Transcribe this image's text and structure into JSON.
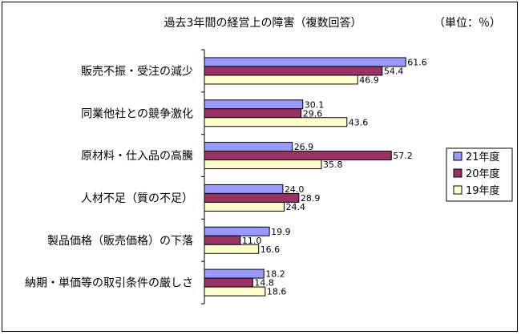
{
  "chart_data": {
    "type": "bar",
    "orientation": "horizontal",
    "title": "過去3年間の経営上の障害（複数回答）",
    "unit": "（単位：％）",
    "categories": [
      "販売不振・受注の減少",
      "同業他社との競争激化",
      "原材料・仕入品の高騰",
      "人材不足（質の不足）",
      "製品価格（販売価格）の下落",
      "納期・単価等の取引条件の厳しさ"
    ],
    "series": [
      {
        "name": "21年度",
        "color": "#9999ff",
        "values": [
          61.6,
          30.1,
          26.9,
          24.0,
          19.9,
          18.2
        ]
      },
      {
        "name": "20年度",
        "color": "#993366",
        "values": [
          54.4,
          29.6,
          57.2,
          28.9,
          11.0,
          14.8
        ]
      },
      {
        "name": "19年度",
        "color": "#ffffcc",
        "values": [
          46.9,
          43.6,
          35.8,
          24.4,
          16.6,
          18.6
        ]
      }
    ],
    "xlim": [
      0,
      64
    ],
    "grid": false,
    "legend": "right"
  }
}
